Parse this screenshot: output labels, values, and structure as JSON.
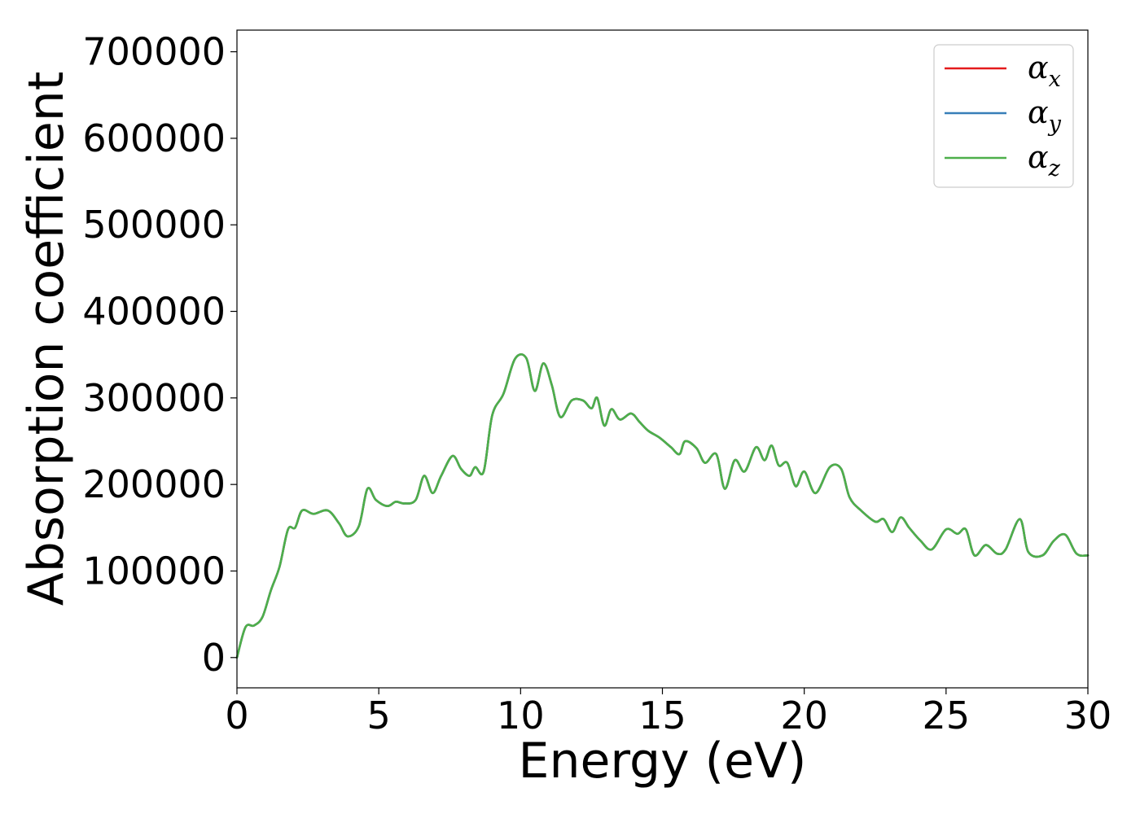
{
  "chart_data": {
    "type": "line",
    "xlabel": "Energy (eV)",
    "ylabel": "Absorption coefficient",
    "xlim": [
      0,
      30
    ],
    "ylim": [
      -35000,
      725000
    ],
    "xticks": [
      0,
      5,
      10,
      15,
      20,
      25,
      30
    ],
    "yticks": [
      0,
      100000,
      200000,
      300000,
      400000,
      500000,
      600000,
      700000
    ],
    "xtick_labels": [
      "0",
      "5",
      "10",
      "15",
      "20",
      "25",
      "30"
    ],
    "ytick_labels": [
      "0",
      "100000",
      "200000",
      "300000",
      "400000",
      "500000",
      "600000",
      "700000"
    ],
    "grid": false,
    "legend_position": "top-right",
    "series": [
      {
        "name": "α",
        "subscript": "x",
        "color": "#e41a1c",
        "points": [
          [
            0,
            0
          ],
          [
            0.3,
            35000
          ],
          [
            0.6,
            37000
          ],
          [
            0.9,
            47000
          ],
          [
            1.2,
            78000
          ],
          [
            1.5,
            105000
          ],
          [
            1.8,
            148000
          ],
          [
            2.05,
            150000
          ],
          [
            2.3,
            170000
          ],
          [
            2.7,
            166000
          ],
          [
            3.2,
            170000
          ],
          [
            3.6,
            155000
          ],
          [
            3.9,
            140000
          ],
          [
            4.3,
            152000
          ],
          [
            4.6,
            195000
          ],
          [
            4.9,
            182000
          ],
          [
            5.3,
            175000
          ],
          [
            5.6,
            180000
          ],
          [
            5.9,
            178000
          ],
          [
            6.3,
            182000
          ],
          [
            6.6,
            210000
          ],
          [
            6.9,
            190000
          ],
          [
            7.2,
            210000
          ],
          [
            7.6,
            233000
          ],
          [
            7.9,
            218000
          ],
          [
            8.2,
            210000
          ],
          [
            8.4,
            220000
          ],
          [
            8.7,
            215000
          ],
          [
            9.0,
            280000
          ],
          [
            9.4,
            305000
          ],
          [
            9.8,
            345000
          ],
          [
            10.2,
            346000
          ],
          [
            10.5,
            308000
          ],
          [
            10.8,
            340000
          ],
          [
            11.1,
            315000
          ],
          [
            11.4,
            278000
          ],
          [
            11.8,
            297000
          ],
          [
            12.2,
            297000
          ],
          [
            12.5,
            288000
          ],
          [
            12.7,
            300000
          ],
          [
            12.95,
            268000
          ],
          [
            13.2,
            287000
          ],
          [
            13.5,
            275000
          ],
          [
            13.9,
            282000
          ],
          [
            14.2,
            272000
          ],
          [
            14.5,
            262000
          ],
          [
            14.9,
            254000
          ],
          [
            15.3,
            243000
          ],
          [
            15.6,
            235000
          ],
          [
            15.8,
            250000
          ],
          [
            16.2,
            242000
          ],
          [
            16.5,
            225000
          ],
          [
            16.9,
            235000
          ],
          [
            17.2,
            195000
          ],
          [
            17.55,
            228000
          ],
          [
            17.9,
            215000
          ],
          [
            18.3,
            243000
          ],
          [
            18.6,
            228000
          ],
          [
            18.85,
            245000
          ],
          [
            19.1,
            222000
          ],
          [
            19.4,
            225000
          ],
          [
            19.7,
            198000
          ],
          [
            20.0,
            215000
          ],
          [
            20.4,
            190000
          ],
          [
            20.9,
            220000
          ],
          [
            21.3,
            218000
          ],
          [
            21.6,
            185000
          ],
          [
            22.0,
            170000
          ],
          [
            22.5,
            157000
          ],
          [
            22.8,
            160000
          ],
          [
            23.1,
            145000
          ],
          [
            23.4,
            162000
          ],
          [
            23.7,
            150000
          ],
          [
            24.1,
            135000
          ],
          [
            24.5,
            125000
          ],
          [
            25.0,
            148000
          ],
          [
            25.4,
            143000
          ],
          [
            25.7,
            148000
          ],
          [
            26.0,
            118000
          ],
          [
            26.4,
            130000
          ],
          [
            26.8,
            120000
          ],
          [
            27.1,
            125000
          ],
          [
            27.6,
            160000
          ],
          [
            27.9,
            122000
          ],
          [
            28.4,
            118000
          ],
          [
            28.8,
            135000
          ],
          [
            29.2,
            142000
          ],
          [
            29.6,
            120000
          ],
          [
            30,
            118000
          ]
        ]
      },
      {
        "name": "α",
        "subscript": "y",
        "color": "#377eb8",
        "points": [
          [
            0,
            0
          ],
          [
            0.3,
            35000
          ],
          [
            0.6,
            37000
          ],
          [
            0.9,
            47000
          ],
          [
            1.2,
            78000
          ],
          [
            1.5,
            105000
          ],
          [
            1.8,
            148000
          ],
          [
            2.05,
            150000
          ],
          [
            2.3,
            170000
          ],
          [
            2.7,
            166000
          ],
          [
            3.2,
            170000
          ],
          [
            3.6,
            155000
          ],
          [
            3.9,
            140000
          ],
          [
            4.3,
            152000
          ],
          [
            4.6,
            195000
          ],
          [
            4.9,
            182000
          ],
          [
            5.3,
            175000
          ],
          [
            5.6,
            180000
          ],
          [
            5.9,
            178000
          ],
          [
            6.3,
            182000
          ],
          [
            6.6,
            210000
          ],
          [
            6.9,
            190000
          ],
          [
            7.2,
            210000
          ],
          [
            7.6,
            233000
          ],
          [
            7.9,
            218000
          ],
          [
            8.2,
            210000
          ],
          [
            8.4,
            220000
          ],
          [
            8.7,
            215000
          ],
          [
            9.0,
            280000
          ],
          [
            9.4,
            305000
          ],
          [
            9.8,
            345000
          ],
          [
            10.2,
            346000
          ],
          [
            10.5,
            308000
          ],
          [
            10.8,
            340000
          ],
          [
            11.1,
            315000
          ],
          [
            11.4,
            278000
          ],
          [
            11.8,
            297000
          ],
          [
            12.2,
            297000
          ],
          [
            12.5,
            288000
          ],
          [
            12.7,
            300000
          ],
          [
            12.95,
            268000
          ],
          [
            13.2,
            287000
          ],
          [
            13.5,
            275000
          ],
          [
            13.9,
            282000
          ],
          [
            14.2,
            272000
          ],
          [
            14.5,
            262000
          ],
          [
            14.9,
            254000
          ],
          [
            15.3,
            243000
          ],
          [
            15.6,
            235000
          ],
          [
            15.8,
            250000
          ],
          [
            16.2,
            242000
          ],
          [
            16.5,
            225000
          ],
          [
            16.9,
            235000
          ],
          [
            17.2,
            195000
          ],
          [
            17.55,
            228000
          ],
          [
            17.9,
            215000
          ],
          [
            18.3,
            243000
          ],
          [
            18.6,
            228000
          ],
          [
            18.85,
            245000
          ],
          [
            19.1,
            222000
          ],
          [
            19.4,
            225000
          ],
          [
            19.7,
            198000
          ],
          [
            20.0,
            215000
          ],
          [
            20.4,
            190000
          ],
          [
            20.9,
            220000
          ],
          [
            21.3,
            218000
          ],
          [
            21.6,
            185000
          ],
          [
            22.0,
            170000
          ],
          [
            22.5,
            157000
          ],
          [
            22.8,
            160000
          ],
          [
            23.1,
            145000
          ],
          [
            23.4,
            162000
          ],
          [
            23.7,
            150000
          ],
          [
            24.1,
            135000
          ],
          [
            24.5,
            125000
          ],
          [
            25.0,
            148000
          ],
          [
            25.4,
            143000
          ],
          [
            25.7,
            148000
          ],
          [
            26.0,
            118000
          ],
          [
            26.4,
            130000
          ],
          [
            26.8,
            120000
          ],
          [
            27.1,
            125000
          ],
          [
            27.6,
            160000
          ],
          [
            27.9,
            122000
          ],
          [
            28.4,
            118000
          ],
          [
            28.8,
            135000
          ],
          [
            29.2,
            142000
          ],
          [
            29.6,
            120000
          ],
          [
            30,
            118000
          ]
        ]
      },
      {
        "name": "α",
        "subscript": "z",
        "color": "#4daf4a",
        "points": [
          [
            0,
            0
          ],
          [
            0.3,
            35000
          ],
          [
            0.6,
            37000
          ],
          [
            0.9,
            47000
          ],
          [
            1.2,
            78000
          ],
          [
            1.5,
            105000
          ],
          [
            1.8,
            148000
          ],
          [
            2.05,
            150000
          ],
          [
            2.3,
            170000
          ],
          [
            2.7,
            166000
          ],
          [
            3.2,
            170000
          ],
          [
            3.6,
            155000
          ],
          [
            3.9,
            140000
          ],
          [
            4.3,
            152000
          ],
          [
            4.6,
            195000
          ],
          [
            4.9,
            182000
          ],
          [
            5.3,
            175000
          ],
          [
            5.6,
            180000
          ],
          [
            5.9,
            178000
          ],
          [
            6.3,
            182000
          ],
          [
            6.6,
            210000
          ],
          [
            6.9,
            190000
          ],
          [
            7.2,
            210000
          ],
          [
            7.6,
            233000
          ],
          [
            7.9,
            218000
          ],
          [
            8.2,
            210000
          ],
          [
            8.4,
            220000
          ],
          [
            8.7,
            215000
          ],
          [
            9.0,
            280000
          ],
          [
            9.4,
            305000
          ],
          [
            9.8,
            345000
          ],
          [
            10.2,
            346000
          ],
          [
            10.5,
            308000
          ],
          [
            10.8,
            340000
          ],
          [
            11.1,
            315000
          ],
          [
            11.4,
            278000
          ],
          [
            11.8,
            297000
          ],
          [
            12.2,
            297000
          ],
          [
            12.5,
            288000
          ],
          [
            12.7,
            300000
          ],
          [
            12.95,
            268000
          ],
          [
            13.2,
            287000
          ],
          [
            13.5,
            275000
          ],
          [
            13.9,
            282000
          ],
          [
            14.2,
            272000
          ],
          [
            14.5,
            262000
          ],
          [
            14.9,
            254000
          ],
          [
            15.3,
            243000
          ],
          [
            15.6,
            235000
          ],
          [
            15.8,
            250000
          ],
          [
            16.2,
            242000
          ],
          [
            16.5,
            225000
          ],
          [
            16.9,
            235000
          ],
          [
            17.2,
            195000
          ],
          [
            17.55,
            228000
          ],
          [
            17.9,
            215000
          ],
          [
            18.3,
            243000
          ],
          [
            18.6,
            228000
          ],
          [
            18.85,
            245000
          ],
          [
            19.1,
            222000
          ],
          [
            19.4,
            225000
          ],
          [
            19.7,
            198000
          ],
          [
            20.0,
            215000
          ],
          [
            20.4,
            190000
          ],
          [
            20.9,
            220000
          ],
          [
            21.3,
            218000
          ],
          [
            21.6,
            185000
          ],
          [
            22.0,
            170000
          ],
          [
            22.5,
            157000
          ],
          [
            22.8,
            160000
          ],
          [
            23.1,
            145000
          ],
          [
            23.4,
            162000
          ],
          [
            23.7,
            150000
          ],
          [
            24.1,
            135000
          ],
          [
            24.5,
            125000
          ],
          [
            25.0,
            148000
          ],
          [
            25.4,
            143000
          ],
          [
            25.7,
            148000
          ],
          [
            26.0,
            118000
          ],
          [
            26.4,
            130000
          ],
          [
            26.8,
            120000
          ],
          [
            27.1,
            125000
          ],
          [
            27.6,
            160000
          ],
          [
            27.9,
            122000
          ],
          [
            28.4,
            118000
          ],
          [
            28.8,
            135000
          ],
          [
            29.2,
            142000
          ],
          [
            29.6,
            120000
          ],
          [
            30,
            118000
          ]
        ]
      }
    ]
  }
}
